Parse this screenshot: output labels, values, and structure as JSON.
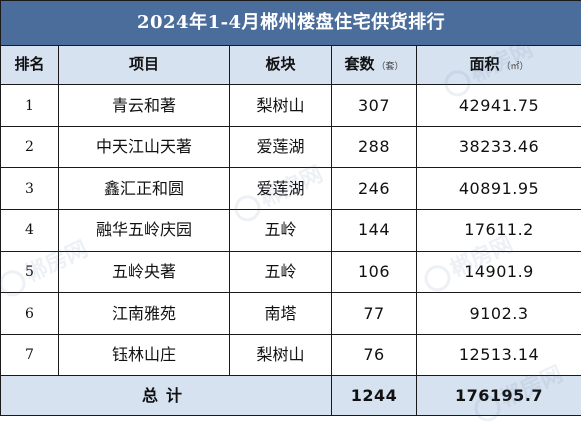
{
  "title": "2024年1-4月郴州楼盘住宅供货排行",
  "headers": {
    "rank": "排名",
    "project": "项目",
    "district": "板块",
    "units": "套数",
    "units_unit": "（套）",
    "area": "面积",
    "area_unit": "（㎡）"
  },
  "rows": [
    {
      "rank": "1",
      "project": "青云和著",
      "district": "梨树山",
      "units": "307",
      "area": "42941.75"
    },
    {
      "rank": "2",
      "project": "中天江山天著",
      "district": "爱莲湖",
      "units": "288",
      "area": "38233.46"
    },
    {
      "rank": "3",
      "project": "鑫汇正和圆",
      "district": "爱莲湖",
      "units": "246",
      "area": "40891.95"
    },
    {
      "rank": "4",
      "project": "融华五岭庆园",
      "district": "五岭",
      "units": "144",
      "area": "17611.2"
    },
    {
      "rank": "5",
      "project": "五岭央著",
      "district": "五岭",
      "units": "106",
      "area": "14901.9"
    },
    {
      "rank": "6",
      "project": "江南雅苑",
      "district": "南塔",
      "units": "77",
      "area": "9102.3"
    },
    {
      "rank": "7",
      "project": "钰林山庄",
      "district": "梨树山",
      "units": "76",
      "area": "12513.14"
    }
  ],
  "total": {
    "label": "总计",
    "units": "1244",
    "area": "176195.7"
  },
  "watermark": {
    "text": "郴房网",
    "icon": "watermark-logo-icon"
  },
  "colors": {
    "title_bg": "#4a6d9c",
    "header_bg": "#d6e2f0"
  }
}
